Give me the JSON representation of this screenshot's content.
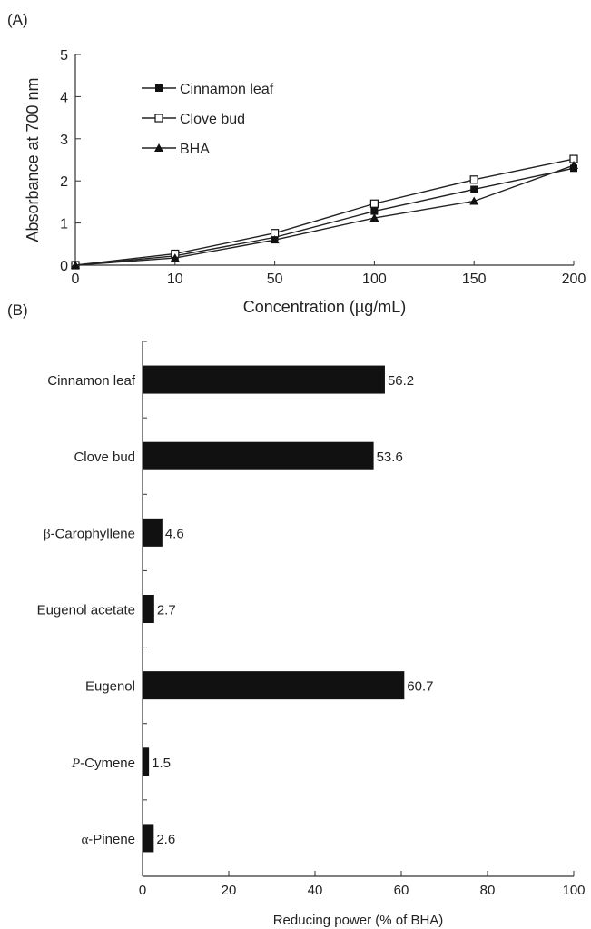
{
  "panel_a_label": "(A)",
  "panel_b_label": "(B)",
  "chart_data": [
    {
      "type": "line",
      "title": "",
      "xlabel": "Concentration (µg/mL)",
      "ylabel": "Absorbance at 700 nm",
      "categories": [
        "0",
        "10",
        "50",
        "100",
        "150",
        "200"
      ],
      "ylim": [
        0,
        5
      ],
      "yticks": [
        "0",
        "1",
        "2",
        "3",
        "4",
        "5"
      ],
      "legend_position": "top-left",
      "series": [
        {
          "name": "Cinnamon leaf",
          "marker": "filled-square",
          "values": [
            0,
            0.22,
            0.66,
            1.28,
            1.8,
            2.3
          ]
        },
        {
          "name": "Clove bud",
          "marker": "open-square",
          "values": [
            0,
            0.27,
            0.76,
            1.46,
            2.03,
            2.52
          ]
        },
        {
          "name": "BHA",
          "marker": "filled-triangle",
          "values": [
            0,
            0.17,
            0.6,
            1.12,
            1.52,
            2.37
          ]
        }
      ]
    },
    {
      "type": "bar",
      "orientation": "horizontal",
      "title": "",
      "xlabel": "Reducing power (% of BHA)",
      "xlim": [
        0,
        100
      ],
      "xticks": [
        "0",
        "20",
        "40",
        "60",
        "80",
        "100"
      ],
      "categories": [
        "Cinnamon leaf",
        "Clove bud",
        "β-Carophyllene",
        "Eugenol acetate",
        "Eugenol",
        "P-Cymene",
        "α-Pinene"
      ],
      "values": [
        56.2,
        53.6,
        4.6,
        2.7,
        60.7,
        1.5,
        2.6
      ],
      "value_labels": [
        "56.2",
        "53.6",
        "4.6",
        "2.7",
        "60.7",
        "1.5",
        "2.6"
      ]
    }
  ]
}
